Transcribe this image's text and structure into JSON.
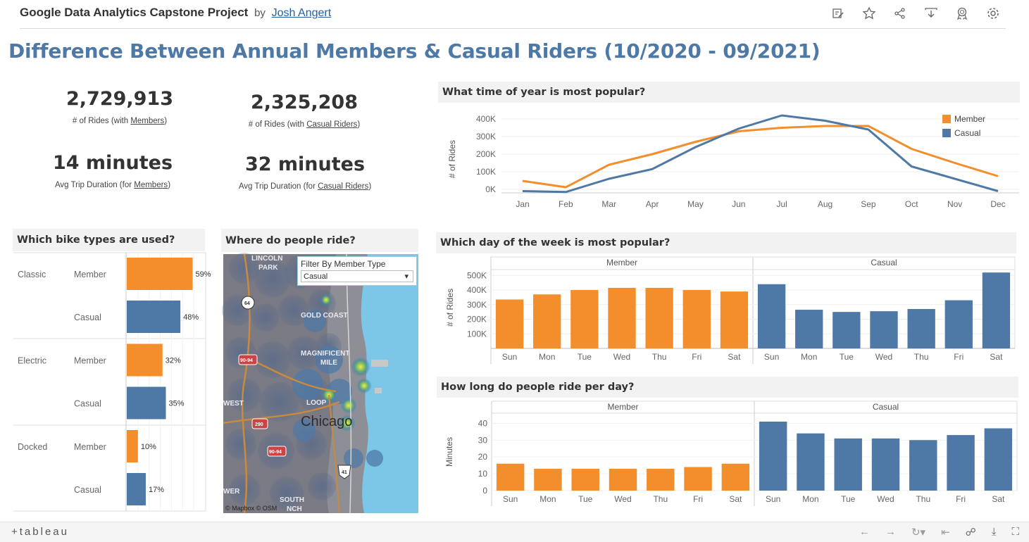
{
  "header": {
    "title": "Google Data Analytics Capstone Project",
    "by": "by",
    "author": "Josh Angert",
    "icons": [
      "edit-icon",
      "star-icon",
      "share-icon",
      "download-icon",
      "badge-icon",
      "settings-icon"
    ]
  },
  "dashboard_title": "Difference Between Annual Members & Casual Riders (10/2020 - 09/2021)",
  "kpis": {
    "member_rides": "2,729,913",
    "member_rides_label_pre": "# of Rides (with ",
    "member_rides_label_link": "Members",
    "member_rides_label_post": ")",
    "casual_rides": "2,325,208",
    "casual_rides_label_pre": "# of Rides (with ",
    "casual_rides_label_link": "Casual Riders",
    "casual_rides_label_post": ")",
    "member_duration": "14 minutes",
    "member_duration_label_pre": "Avg Trip Duration (for ",
    "member_duration_label_link": "Members",
    "member_duration_label_post": ")",
    "casual_duration": "32 minutes",
    "casual_duration_label_pre": "Avg Trip Duration (for ",
    "casual_duration_label_link": "Casual Riders",
    "casual_duration_label_post": ")"
  },
  "panels": {
    "bike_types": "Which bike types are used?",
    "where": "Where do people ride?",
    "time_of_year": "What time of year is most popular?",
    "day_of_week": "Which day of the week is most popular?",
    "ride_length": "How long do people ride per day?"
  },
  "map": {
    "filter_label": "Filter By Member Type",
    "filter_value": "Casual",
    "city_label": "Chicago",
    "labels": [
      "LINCOLN",
      "PARK",
      "GOLD COAST",
      "MAGNIFICENT",
      "MILE",
      "LOOP",
      "WEST",
      "WER",
      "SOUTH",
      "NCH"
    ],
    "shields": [
      "64",
      "90-94",
      "290",
      "90-94",
      "41"
    ],
    "attribution": "© Mapbox  © OSM"
  },
  "colors": {
    "member": "#f28e2b",
    "casual": "#4e79a7",
    "title_blue": "#4e79a7"
  },
  "chart_data": [
    {
      "type": "line",
      "title": "What time of year is most popular?",
      "ylabel": "# of Rides",
      "x": [
        "Jan",
        "Feb",
        "Mar",
        "Apr",
        "May",
        "Jun",
        "Jul",
        "Aug",
        "Sep",
        "Oct",
        "Nov",
        "Dec"
      ],
      "yticks": [
        "0K",
        "100K",
        "200K",
        "300K",
        "400K"
      ],
      "ylim": [
        0,
        420000
      ],
      "legend": "top-right",
      "series": [
        {
          "name": "Member",
          "values": [
            48000,
            12000,
            140000,
            200000,
            270000,
            330000,
            350000,
            360000,
            360000,
            230000,
            150000,
            75000
          ]
        },
        {
          "name": "Casual",
          "values": [
            -10000,
            -15000,
            60000,
            115000,
            240000,
            345000,
            420000,
            390000,
            340000,
            130000,
            60000,
            -10000
          ]
        }
      ]
    },
    {
      "type": "bar",
      "title": "Which day of the week is most popular?",
      "ylabel": "# of Rides",
      "categories": [
        "Sun",
        "Mon",
        "Tue",
        "Wed",
        "Thu",
        "Fri",
        "Sat"
      ],
      "yticks": [
        "100K",
        "200K",
        "300K",
        "400K",
        "500K"
      ],
      "ylim": [
        0,
        540000
      ],
      "series": [
        {
          "name": "Member",
          "values": [
            335000,
            370000,
            400000,
            415000,
            415000,
            400000,
            390000
          ]
        },
        {
          "name": "Casual",
          "values": [
            440000,
            265000,
            250000,
            255000,
            270000,
            330000,
            520000
          ]
        }
      ]
    },
    {
      "type": "bar",
      "title": "How long do people ride per day?",
      "ylabel": "Minutes",
      "categories": [
        "Sun",
        "Mon",
        "Tue",
        "Wed",
        "Thu",
        "Fri",
        "Sat"
      ],
      "yticks": [
        "0",
        "10",
        "20",
        "30",
        "40"
      ],
      "ylim": [
        0,
        46
      ],
      "series": [
        {
          "name": "Member",
          "values": [
            16,
            13,
            13,
            13,
            13,
            14,
            16
          ]
        },
        {
          "name": "Casual",
          "values": [
            41,
            34,
            31,
            31,
            30,
            33,
            37
          ]
        }
      ]
    },
    {
      "type": "bar",
      "title": "Which bike types are used?",
      "categories": [
        "Classic",
        "Electric",
        "Docked"
      ],
      "series": [
        {
          "name": "Member",
          "values": [
            59,
            32,
            10
          ],
          "labels": [
            "59%",
            "32%",
            "10%"
          ]
        },
        {
          "name": "Casual",
          "values": [
            48,
            35,
            17
          ],
          "labels": [
            "48%",
            "35%",
            "17%"
          ]
        }
      ]
    }
  ],
  "footer": {
    "logo": "+tableau",
    "icons": [
      "undo-icon",
      "redo-icon",
      "revert-icon",
      "reset-icon",
      "share-icon",
      "download-icon",
      "fullscreen-icon"
    ]
  }
}
